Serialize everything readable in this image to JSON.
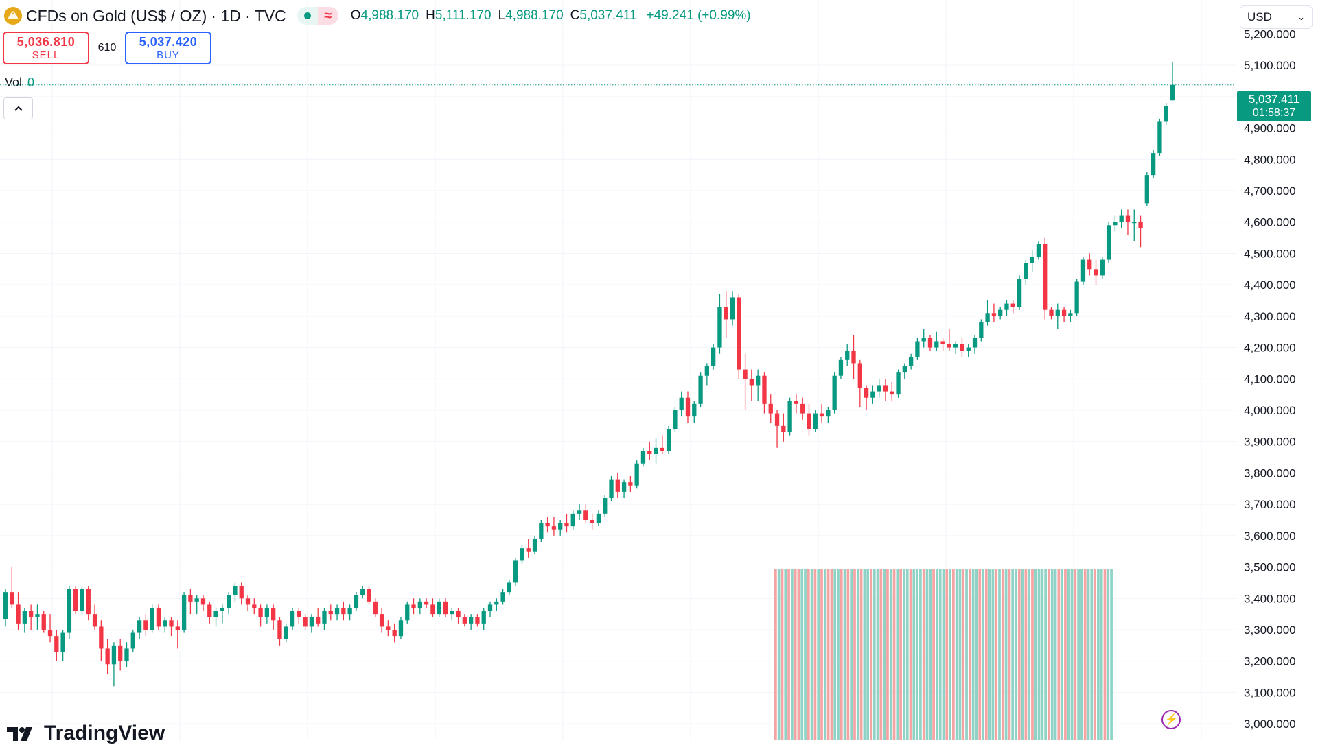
{
  "header": {
    "symbol_name": "CFDs on Gold (US$ / OZ)",
    "interval_source": "· 1D · TVC",
    "market_status_icon": "green-dot-icon",
    "delay_icon": "approx-wave-icon",
    "ohlc": {
      "open_label": "O",
      "open": "4,988.170",
      "high_label": "H",
      "high": "5,111.170",
      "low_label": "L",
      "low": "4,988.170",
      "close_label": "C",
      "close": "5,037.411",
      "change": "+49.241 (+0.99%)"
    }
  },
  "trade": {
    "sell_price": "5,036.810",
    "sell_label": "SELL",
    "spread": "610",
    "buy_price": "5,037.420",
    "buy_label": "BUY"
  },
  "volume_legend": {
    "label": "Vol",
    "value": "0"
  },
  "currency_selector": {
    "value": "USD"
  },
  "price_tag": {
    "price": "5,037.411",
    "countdown": "01:58:37"
  },
  "branding": {
    "name": "TradingView"
  },
  "colors": {
    "up": "#089981",
    "down": "#f23645",
    "up_volume": "#8fd3c6",
    "down_volume": "#f5a4a4",
    "grid": "#f0f3fa"
  },
  "chart_data": {
    "type": "candlestick",
    "ylim": [
      2950,
      5260
    ],
    "y_ticks": [
      3000,
      3100,
      3200,
      3300,
      3400,
      3500,
      3600,
      3700,
      3800,
      3900,
      4000,
      4100,
      4200,
      4300,
      4400,
      4500,
      4600,
      4700,
      4800,
      4900,
      5000,
      5100,
      5200
    ],
    "y_tick_labels": [
      "3,000.000",
      "3,100.000",
      "3,200.000",
      "3,300.000",
      "3,400.000",
      "3,500.000",
      "3,600.000",
      "3,700.000",
      "3,800.000",
      "3,900.000",
      "4,000.000",
      "4,100.000",
      "4,200.000",
      "4,300.000",
      "4,400.000",
      "4,500.000",
      "4,600.000",
      "4,700.000",
      "4,800.000",
      "4,900.000",
      "5,000.000",
      "5,100.000",
      "5,200.000"
    ],
    "last_price": 5037.411,
    "candles": [
      [
        3335,
        3430,
        3310,
        3420
      ],
      [
        3420,
        3500,
        3370,
        3380
      ],
      [
        3380,
        3420,
        3300,
        3320
      ],
      [
        3320,
        3370,
        3290,
        3360
      ],
      [
        3360,
        3380,
        3300,
        3340
      ],
      [
        3340,
        3380,
        3300,
        3350
      ],
      [
        3350,
        3360,
        3290,
        3300
      ],
      [
        3300,
        3350,
        3260,
        3280
      ],
      [
        3280,
        3300,
        3200,
        3230
      ],
      [
        3230,
        3300,
        3200,
        3290
      ],
      [
        3290,
        3440,
        3270,
        3430
      ],
      [
        3430,
        3440,
        3350,
        3360
      ],
      [
        3360,
        3440,
        3350,
        3430
      ],
      [
        3430,
        3440,
        3330,
        3350
      ],
      [
        3350,
        3380,
        3300,
        3310
      ],
      [
        3310,
        3330,
        3200,
        3240
      ],
      [
        3240,
        3270,
        3160,
        3190
      ],
      [
        3190,
        3260,
        3120,
        3250
      ],
      [
        3250,
        3270,
        3170,
        3200
      ],
      [
        3200,
        3260,
        3180,
        3240
      ],
      [
        3240,
        3300,
        3230,
        3290
      ],
      [
        3290,
        3340,
        3270,
        3330
      ],
      [
        3330,
        3350,
        3280,
        3300
      ],
      [
        3300,
        3380,
        3290,
        3370
      ],
      [
        3370,
        3380,
        3300,
        3310
      ],
      [
        3310,
        3340,
        3290,
        3330
      ],
      [
        3330,
        3340,
        3280,
        3310
      ],
      [
        3310,
        3330,
        3240,
        3300
      ],
      [
        3300,
        3420,
        3290,
        3410
      ],
      [
        3410,
        3430,
        3350,
        3390
      ],
      [
        3390,
        3410,
        3350,
        3400
      ],
      [
        3400,
        3410,
        3360,
        3380
      ],
      [
        3380,
        3390,
        3320,
        3340
      ],
      [
        3340,
        3370,
        3310,
        3360
      ],
      [
        3360,
        3380,
        3320,
        3370
      ],
      [
        3370,
        3420,
        3350,
        3410
      ],
      [
        3410,
        3450,
        3390,
        3440
      ],
      [
        3440,
        3450,
        3380,
        3400
      ],
      [
        3400,
        3410,
        3360,
        3380
      ],
      [
        3380,
        3400,
        3350,
        3370
      ],
      [
        3370,
        3380,
        3310,
        3340
      ],
      [
        3340,
        3380,
        3320,
        3370
      ],
      [
        3370,
        3380,
        3300,
        3330
      ],
      [
        3330,
        3340,
        3250,
        3270
      ],
      [
        3270,
        3320,
        3260,
        3310
      ],
      [
        3310,
        3370,
        3300,
        3360
      ],
      [
        3360,
        3370,
        3320,
        3340
      ],
      [
        3340,
        3350,
        3300,
        3310
      ],
      [
        3310,
        3350,
        3290,
        3340
      ],
      [
        3340,
        3370,
        3310,
        3320
      ],
      [
        3320,
        3370,
        3300,
        3360
      ],
      [
        3360,
        3380,
        3330,
        3350
      ],
      [
        3350,
        3380,
        3330,
        3370
      ],
      [
        3370,
        3390,
        3330,
        3350
      ],
      [
        3350,
        3380,
        3330,
        3370
      ],
      [
        3370,
        3420,
        3360,
        3410
      ],
      [
        3410,
        3440,
        3400,
        3430
      ],
      [
        3430,
        3440,
        3380,
        3390
      ],
      [
        3390,
        3400,
        3340,
        3350
      ],
      [
        3350,
        3370,
        3290,
        3310
      ],
      [
        3310,
        3330,
        3280,
        3300
      ],
      [
        3300,
        3320,
        3260,
        3280
      ],
      [
        3280,
        3340,
        3270,
        3330
      ],
      [
        3330,
        3390,
        3320,
        3380
      ],
      [
        3380,
        3400,
        3350,
        3370
      ],
      [
        3370,
        3400,
        3350,
        3390
      ],
      [
        3390,
        3400,
        3370,
        3380
      ],
      [
        3380,
        3400,
        3340,
        3350
      ],
      [
        3350,
        3400,
        3340,
        3390
      ],
      [
        3390,
        3400,
        3340,
        3350
      ],
      [
        3350,
        3370,
        3330,
        3360
      ],
      [
        3360,
        3370,
        3320,
        3340
      ],
      [
        3340,
        3350,
        3310,
        3320
      ],
      [
        3320,
        3350,
        3300,
        3340
      ],
      [
        3340,
        3350,
        3310,
        3320
      ],
      [
        3320,
        3370,
        3300,
        3360
      ],
      [
        3360,
        3390,
        3340,
        3380
      ],
      [
        3380,
        3400,
        3360,
        3390
      ],
      [
        3390,
        3430,
        3380,
        3420
      ],
      [
        3420,
        3460,
        3410,
        3450
      ],
      [
        3450,
        3530,
        3440,
        3520
      ],
      [
        3520,
        3570,
        3510,
        3560
      ],
      [
        3560,
        3590,
        3530,
        3550
      ],
      [
        3550,
        3600,
        3540,
        3590
      ],
      [
        3590,
        3650,
        3580,
        3640
      ],
      [
        3640,
        3660,
        3610,
        3630
      ],
      [
        3630,
        3660,
        3600,
        3620
      ],
      [
        3620,
        3650,
        3600,
        3640
      ],
      [
        3640,
        3670,
        3610,
        3630
      ],
      [
        3630,
        3680,
        3620,
        3670
      ],
      [
        3670,
        3700,
        3650,
        3680
      ],
      [
        3680,
        3700,
        3640,
        3650
      ],
      [
        3650,
        3670,
        3620,
        3640
      ],
      [
        3640,
        3680,
        3630,
        3670
      ],
      [
        3670,
        3730,
        3660,
        3720
      ],
      [
        3720,
        3790,
        3710,
        3780
      ],
      [
        3780,
        3800,
        3720,
        3740
      ],
      [
        3740,
        3780,
        3720,
        3770
      ],
      [
        3770,
        3790,
        3740,
        3760
      ],
      [
        3760,
        3840,
        3750,
        3830
      ],
      [
        3830,
        3880,
        3820,
        3870
      ],
      [
        3870,
        3900,
        3840,
        3860
      ],
      [
        3860,
        3910,
        3830,
        3880
      ],
      [
        3880,
        3920,
        3860,
        3870
      ],
      [
        3870,
        3950,
        3860,
        3940
      ],
      [
        3940,
        4010,
        3930,
        4000
      ],
      [
        4000,
        4060,
        3980,
        4040
      ],
      [
        4040,
        4060,
        3960,
        3980
      ],
      [
        3980,
        4030,
        3960,
        4020
      ],
      [
        4020,
        4120,
        4010,
        4110
      ],
      [
        4110,
        4150,
        4080,
        4140
      ],
      [
        4140,
        4210,
        4130,
        4200
      ],
      [
        4200,
        4370,
        4180,
        4330
      ],
      [
        4330,
        4380,
        4230,
        4290
      ],
      [
        4290,
        4380,
        4270,
        4360
      ],
      [
        4360,
        4370,
        4100,
        4130
      ],
      [
        4130,
        4180,
        4000,
        4100
      ],
      [
        4100,
        4130,
        4030,
        4080
      ],
      [
        4080,
        4130,
        4030,
        4110
      ],
      [
        4110,
        4120,
        3990,
        4020
      ],
      [
        4020,
        4050,
        3960,
        3990
      ],
      [
        3990,
        4000,
        3880,
        3950
      ],
      [
        3950,
        3990,
        3900,
        3930
      ],
      [
        3930,
        4040,
        3920,
        4030
      ],
      [
        4030,
        4050,
        3990,
        4020
      ],
      [
        4020,
        4040,
        3970,
        3990
      ],
      [
        3990,
        4020,
        3920,
        3940
      ],
      [
        3940,
        4000,
        3930,
        3990
      ],
      [
        3990,
        4020,
        3960,
        3980
      ],
      [
        3980,
        4010,
        3960,
        4000
      ],
      [
        4000,
        4120,
        3990,
        4110
      ],
      [
        4110,
        4170,
        4100,
        4160
      ],
      [
        4160,
        4210,
        4140,
        4190
      ],
      [
        4190,
        4240,
        4100,
        4150
      ],
      [
        4150,
        4160,
        4010,
        4070
      ],
      [
        4070,
        4080,
        4000,
        4040
      ],
      [
        4040,
        4080,
        4020,
        4060
      ],
      [
        4060,
        4100,
        4040,
        4080
      ],
      [
        4080,
        4100,
        4030,
        4060
      ],
      [
        4060,
        4090,
        4030,
        4050
      ],
      [
        4050,
        4130,
        4040,
        4120
      ],
      [
        4120,
        4150,
        4100,
        4140
      ],
      [
        4140,
        4180,
        4130,
        4170
      ],
      [
        4170,
        4230,
        4160,
        4220
      ],
      [
        4220,
        4260,
        4200,
        4230
      ],
      [
        4230,
        4240,
        4190,
        4200
      ],
      [
        4200,
        4250,
        4190,
        4220
      ],
      [
        4220,
        4230,
        4190,
        4210
      ],
      [
        4210,
        4260,
        4190,
        4200
      ],
      [
        4200,
        4220,
        4180,
        4210
      ],
      [
        4210,
        4230,
        4170,
        4190
      ],
      [
        4190,
        4210,
        4170,
        4200
      ],
      [
        4200,
        4240,
        4180,
        4230
      ],
      [
        4230,
        4290,
        4220,
        4280
      ],
      [
        4280,
        4350,
        4270,
        4310
      ],
      [
        4310,
        4340,
        4280,
        4300
      ],
      [
        4300,
        4330,
        4290,
        4320
      ],
      [
        4320,
        4350,
        4300,
        4340
      ],
      [
        4340,
        4350,
        4310,
        4330
      ],
      [
        4330,
        4430,
        4320,
        4420
      ],
      [
        4420,
        4480,
        4400,
        4470
      ],
      [
        4470,
        4510,
        4440,
        4490
      ],
      [
        4490,
        4540,
        4480,
        4530
      ],
      [
        4530,
        4550,
        4290,
        4320
      ],
      [
        4320,
        4330,
        4290,
        4300
      ],
      [
        4300,
        4340,
        4260,
        4320
      ],
      [
        4320,
        4330,
        4280,
        4300
      ],
      [
        4300,
        4320,
        4280,
        4310
      ],
      [
        4310,
        4420,
        4300,
        4410
      ],
      [
        4410,
        4490,
        4400,
        4480
      ],
      [
        4480,
        4500,
        4430,
        4450
      ],
      [
        4450,
        4480,
        4400,
        4430
      ],
      [
        4430,
        4490,
        4420,
        4480
      ],
      [
        4480,
        4600,
        4470,
        4590
      ],
      [
        4590,
        4620,
        4570,
        4600
      ],
      [
        4600,
        4640,
        4580,
        4620
      ],
      [
        4620,
        4640,
        4560,
        4600
      ],
      [
        4600,
        4640,
        4540,
        4600
      ],
      [
        4600,
        4620,
        4520,
        4580
      ],
      [
        4660,
        4760,
        4650,
        4750
      ],
      [
        4750,
        4830,
        4740,
        4820
      ],
      [
        4820,
        4930,
        4810,
        4920
      ],
      [
        4920,
        4980,
        4910,
        4970
      ],
      [
        4988.17,
        5111.17,
        4988.17,
        5037.411
      ]
    ],
    "volume": {
      "note": "volume histogram shown on lower portion for recent bars",
      "directions": [
        "down",
        "up",
        "down",
        "up",
        "down",
        "up",
        "down",
        "down",
        "up",
        "up",
        "down",
        "up",
        "down",
        "up",
        "down",
        "up",
        "down",
        "down",
        "up",
        "up",
        "down",
        "up",
        "down",
        "up",
        "down",
        "up",
        "down",
        "up",
        "up",
        "down",
        "up",
        "up",
        "down",
        "up",
        "down",
        "up",
        "down",
        "up",
        "down",
        "up",
        "up",
        "down",
        "up",
        "up",
        "up",
        "down",
        "up",
        "up",
        "down",
        "up",
        "up",
        "up",
        "down",
        "up",
        "down",
        "up",
        "up",
        "down",
        "up",
        "down",
        "up",
        "up",
        "down",
        "up",
        "down",
        "up",
        "up",
        "down",
        "up",
        "down",
        "up",
        "down",
        "up",
        "up",
        "down",
        "up",
        "down",
        "up",
        "down",
        "up",
        "up",
        "up",
        "up",
        "down",
        "up",
        "up",
        "down",
        "up",
        "down",
        "up",
        "up",
        "down",
        "up",
        "up",
        "down",
        "up",
        "up",
        "down",
        "up",
        "up",
        "down",
        "up",
        "up"
      ]
    }
  }
}
